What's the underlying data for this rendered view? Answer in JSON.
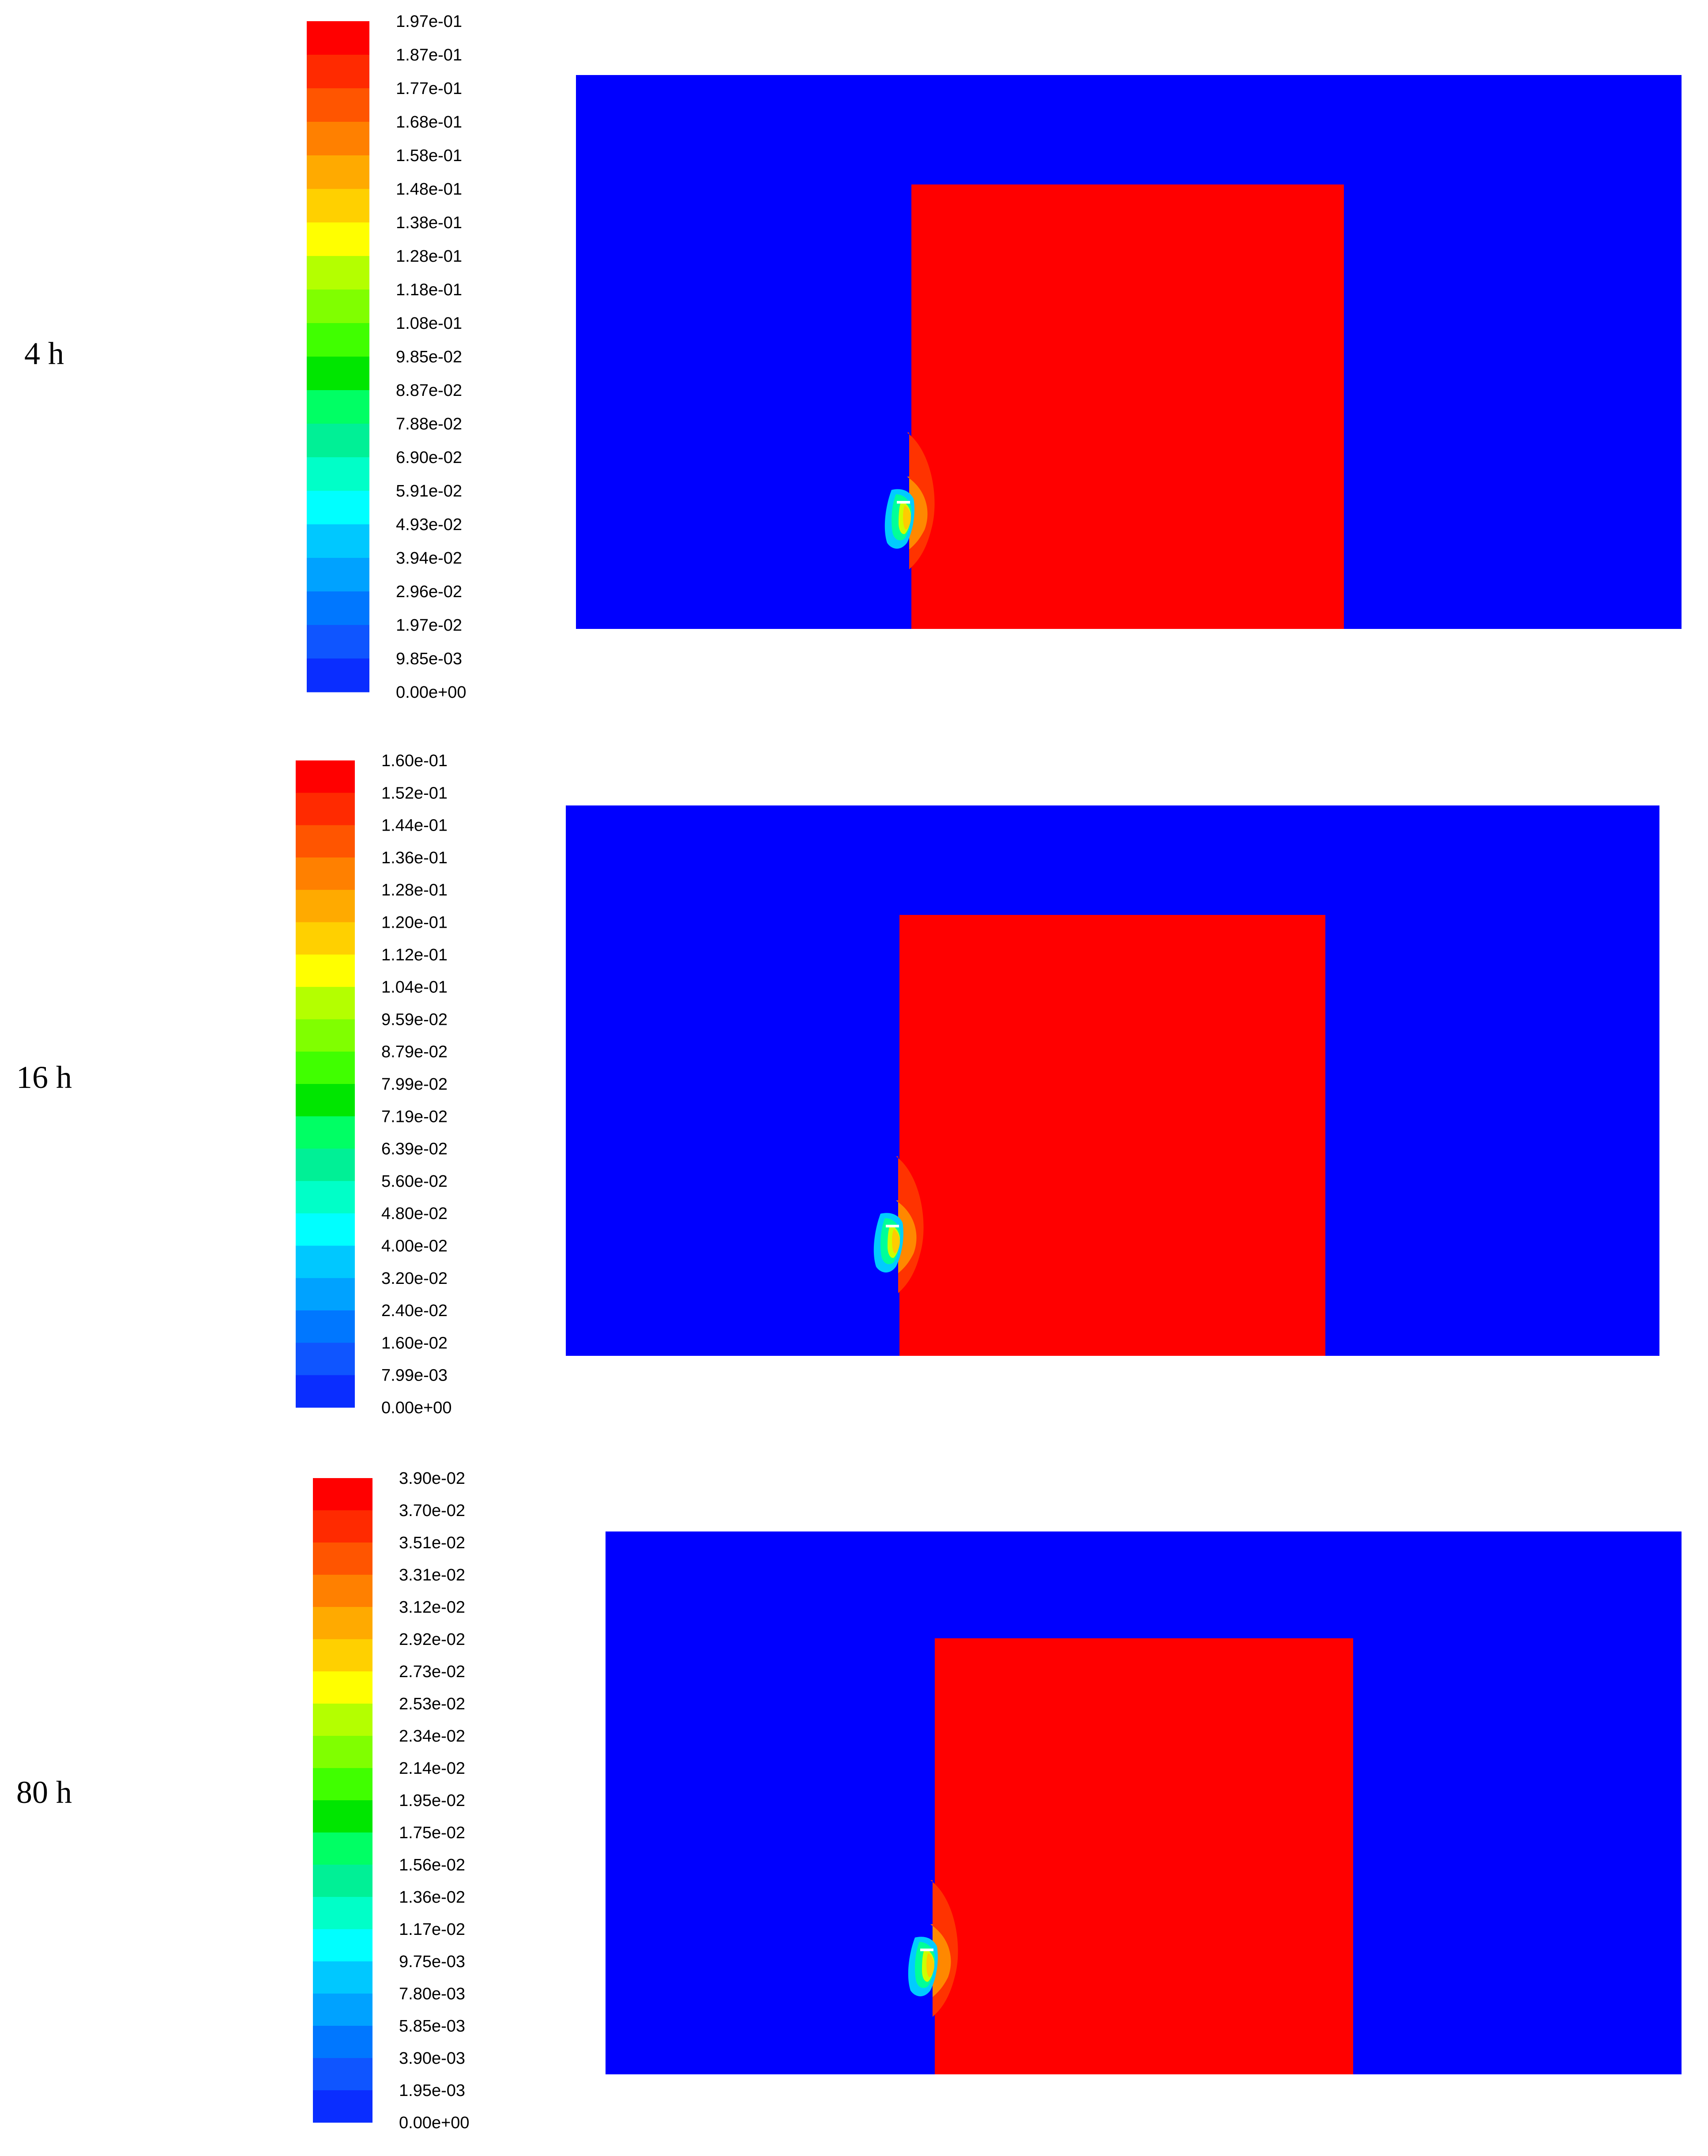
{
  "colors": {
    "domain_background": "#0000ff",
    "block": "#ff0000",
    "page_background": "#ffffff"
  },
  "colormap": [
    "#0000ff",
    "#0a2dff",
    "#0f55ff",
    "#0077ff",
    "#00a2ff",
    "#00c8ff",
    "#00ffff",
    "#00ffc8",
    "#00f096",
    "#00ff64",
    "#00e600",
    "#40ff00",
    "#80ff00",
    "#b4ff00",
    "#ffff00",
    "#ffd000",
    "#ffaa00",
    "#ff8000",
    "#ff5500",
    "#ff2a00",
    "#ff0000"
  ],
  "chart_data": [
    {
      "type": "heatmap",
      "time_label": "4 h",
      "legend_ticks": [
        "1.97e-01",
        "1.87e-01",
        "1.77e-01",
        "1.68e-01",
        "1.58e-01",
        "1.48e-01",
        "1.38e-01",
        "1.28e-01",
        "1.18e-01",
        "1.08e-01",
        "9.85e-02",
        "8.87e-02",
        "7.88e-02",
        "6.90e-02",
        "5.91e-02",
        "4.93e-02",
        "3.94e-02",
        "2.96e-02",
        "1.97e-02",
        "9.85e-03",
        "0.00e+00"
      ],
      "range": [
        0,
        0.197
      ]
    },
    {
      "type": "heatmap",
      "time_label": "16 h",
      "legend_ticks": [
        "1.60e-01",
        "1.52e-01",
        "1.44e-01",
        "1.36e-01",
        "1.28e-01",
        "1.20e-01",
        "1.12e-01",
        "1.04e-01",
        "9.59e-02",
        "8.79e-02",
        "7.99e-02",
        "7.19e-02",
        "6.39e-02",
        "5.60e-02",
        "4.80e-02",
        "4.00e-02",
        "3.20e-02",
        "2.40e-02",
        "1.60e-02",
        "7.99e-03",
        "0.00e+00"
      ],
      "range": [
        0,
        0.16
      ]
    },
    {
      "type": "heatmap",
      "time_label": "80 h",
      "legend_ticks": [
        "3.90e-02",
        "3.70e-02",
        "3.51e-02",
        "3.31e-02",
        "3.12e-02",
        "2.92e-02",
        "2.73e-02",
        "2.53e-02",
        "2.34e-02",
        "2.14e-02",
        "1.95e-02",
        "1.75e-02",
        "1.56e-02",
        "1.36e-02",
        "1.17e-02",
        "9.75e-03",
        "7.80e-03",
        "5.85e-03",
        "3.90e-03",
        "1.95e-03",
        "0.00e+00"
      ],
      "range": [
        0,
        0.039
      ]
    }
  ]
}
